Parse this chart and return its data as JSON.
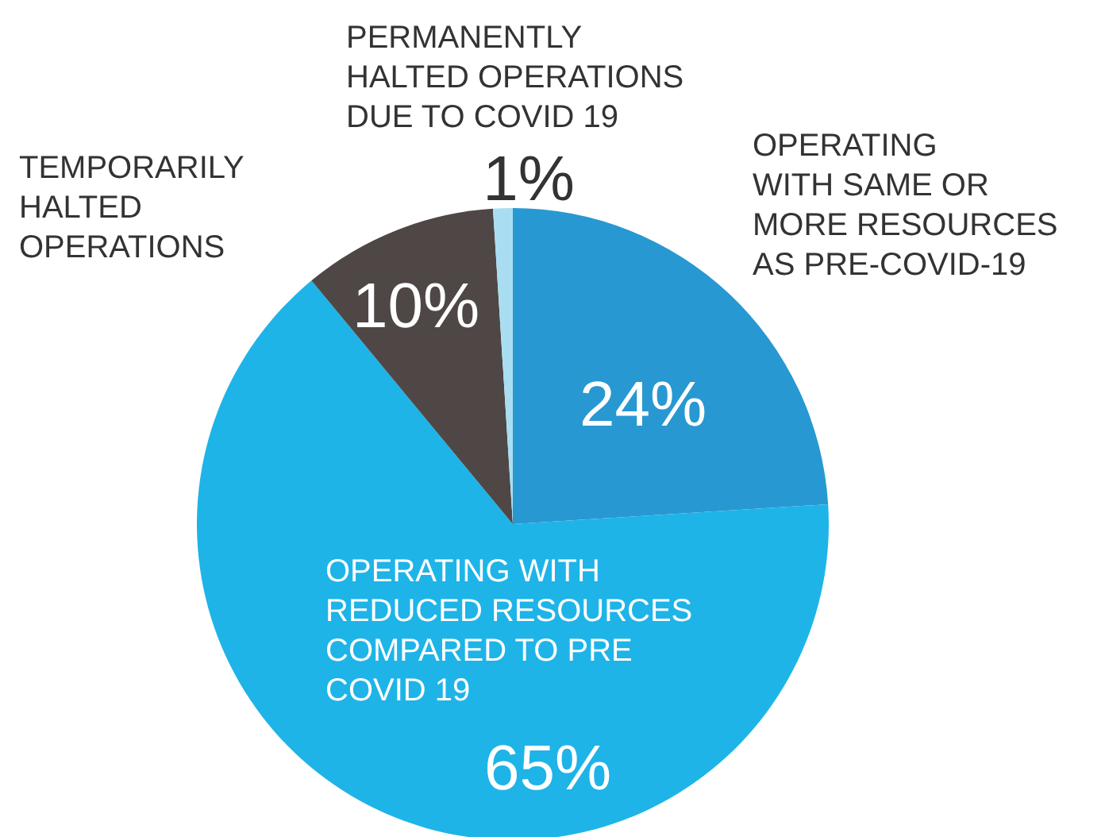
{
  "chart_data": {
    "type": "pie",
    "categories": [
      "OPERATING WITH SAME OR MORE RESOURCES AS PRE-COVID-19",
      "OPERATING WITH REDUCED RESOURCES COMPARED TO PRE COVID 19",
      "TEMPORARILY HALTED OPERATIONS",
      "PERMANENTLY HALTED OPERATIONS DUE TO COVID 19"
    ],
    "values": [
      24,
      65,
      10,
      1
    ],
    "colors": [
      "#2898d2",
      "#1eb4e8",
      "#4e4745",
      "#a9def2"
    ],
    "value_labels": [
      "24%",
      "65%",
      "10%",
      "1%"
    ]
  }
}
